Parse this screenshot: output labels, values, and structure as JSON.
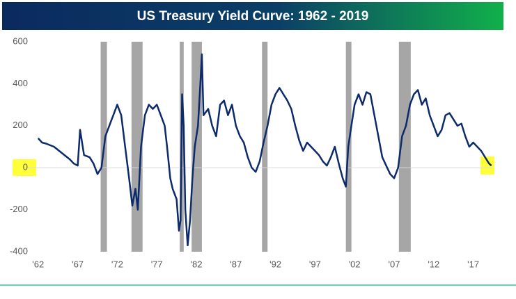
{
  "chart_data": {
    "type": "line",
    "title": "US Treasury Yield Curve: 1962 - 2019",
    "xlim": [
      1960.7,
      2019.5
    ],
    "xticks": [
      {
        "value": 1962,
        "label": "'62"
      },
      {
        "value": 1967,
        "label": "'67"
      },
      {
        "value": 1972,
        "label": "'72"
      },
      {
        "value": 1977,
        "label": "'77"
      },
      {
        "value": 1982,
        "label": "'82"
      },
      {
        "value": 1987,
        "label": "'87"
      },
      {
        "value": 1992,
        "label": "'92"
      },
      {
        "value": 1997,
        "label": "'97"
      },
      {
        "value": 2002,
        "label": "'02"
      },
      {
        "value": 2007,
        "label": "'07"
      },
      {
        "value": 2012,
        "label": "'12"
      },
      {
        "value": 2017,
        "label": "'17"
      }
    ],
    "ylim": [
      -400,
      600
    ],
    "yticks": [
      -400,
      -200,
      0,
      200,
      400,
      600
    ],
    "recessions": [
      [
        1969.9,
        1970.7
      ],
      [
        1973.8,
        1975.2
      ],
      [
        1979.9,
        1980.4
      ],
      [
        1981.4,
        1982.7
      ],
      [
        1990.3,
        1991.0
      ],
      [
        2000.9,
        2001.6
      ],
      [
        2007.6,
        2009.1
      ]
    ],
    "recession_color": "#a6a6a6",
    "series": [
      {
        "color": "#0d2a6b",
        "x": [
          1962.0,
          1962.5,
          1963,
          1964,
          1965,
          1966,
          1966.5,
          1967,
          1967.3,
          1967.8,
          1968.5,
          1969,
          1969.5,
          1970,
          1970.5,
          1971,
          1971.5,
          1972,
          1972.5,
          1973,
          1973.5,
          1973.9,
          1974.3,
          1974.6,
          1975,
          1975.5,
          1976,
          1976.5,
          1977,
          1977.5,
          1978,
          1978.3,
          1978.7,
          1979,
          1979.5,
          1979.8,
          1980,
          1980.2,
          1980.4,
          1980.6,
          1980.9,
          1981.2,
          1981.5,
          1981.8,
          1982.2,
          1982.5,
          1982.7,
          1982.9,
          1983.5,
          1984,
          1984.5,
          1985,
          1985.5,
          1986,
          1986.5,
          1987,
          1987.5,
          1988,
          1988.5,
          1989,
          1989.5,
          1990,
          1990.5,
          1991,
          1991.5,
          1992,
          1992.5,
          1993,
          1993.5,
          1994,
          1994.5,
          1995,
          1995.5,
          1996,
          1996.5,
          1997,
          1997.5,
          1998,
          1998.5,
          1999,
          1999.5,
          2000,
          2000.5,
          2000.9,
          2001.2,
          2001.6,
          2002,
          2002.5,
          2003,
          2003.5,
          2004,
          2004.5,
          2005,
          2005.5,
          2006,
          2006.5,
          2007,
          2007.5,
          2008,
          2008.5,
          2009,
          2009.5,
          2010,
          2010.5,
          2011,
          2011.5,
          2012,
          2012.5,
          2013,
          2013.5,
          2014,
          2014.5,
          2015,
          2015.5,
          2016,
          2016.5,
          2017,
          2017.5,
          2018,
          2018.5,
          2019,
          2019.3
        ],
        "values": [
          140,
          120,
          115,
          100,
          70,
          40,
          20,
          10,
          180,
          60,
          50,
          20,
          -30,
          0,
          150,
          200,
          250,
          300,
          250,
          100,
          -50,
          -180,
          -100,
          -200,
          100,
          250,
          300,
          280,
          300,
          250,
          200,
          100,
          -50,
          -100,
          -150,
          -300,
          -250,
          350,
          200,
          -200,
          -370,
          -250,
          -50,
          100,
          200,
          400,
          540,
          250,
          280,
          200,
          150,
          300,
          320,
          250,
          300,
          200,
          150,
          120,
          50,
          0,
          -20,
          30,
          120,
          200,
          300,
          350,
          380,
          350,
          320,
          280,
          200,
          130,
          80,
          120,
          100,
          80,
          60,
          30,
          10,
          50,
          100,
          20,
          -50,
          -90,
          100,
          200,
          300,
          350,
          300,
          360,
          350,
          250,
          150,
          50,
          10,
          -30,
          -50,
          0,
          150,
          200,
          300,
          350,
          370,
          300,
          330,
          250,
          200,
          150,
          180,
          250,
          260,
          230,
          200,
          210,
          150,
          100,
          120,
          100,
          80,
          50,
          20,
          10
        ]
      }
    ]
  }
}
